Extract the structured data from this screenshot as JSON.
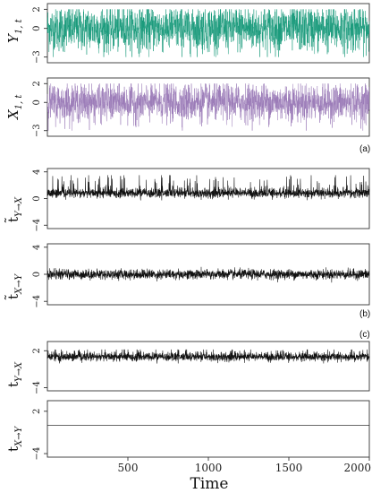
{
  "chart_data": [
    {
      "type": "line",
      "panel": "(a)",
      "ylabel": {
        "main": "Y",
        "sub": "1, t"
      },
      "yticks": [
        "−3",
        "0",
        "2"
      ],
      "ytick_values": [
        -3,
        0,
        2
      ],
      "ylim": [
        -3.6,
        2.6
      ],
      "xlim": [
        0,
        2000
      ],
      "series": [
        {
          "color": "#1a9b7c",
          "kind": "dense-noise",
          "range": [
            -3,
            2
          ],
          "mean": 0.0,
          "sd": 1.2
        }
      ]
    },
    {
      "type": "line",
      "panel": "(a)",
      "ylabel": {
        "main": "X",
        "sub": "1, t"
      },
      "yticks": [
        "−3",
        "0",
        "2"
      ],
      "ytick_values": [
        -3,
        0,
        2
      ],
      "ylim": [
        -3.6,
        2.6
      ],
      "xlim": [
        0,
        2000
      ],
      "series": [
        {
          "color": "#9b7bb8",
          "kind": "dense-noise",
          "range": [
            -3,
            2
          ],
          "mean": 0.0,
          "sd": 1.0
        }
      ]
    },
    {
      "type": "line",
      "panel": "(b)",
      "ylabel": {
        "main": "t̃",
        "sub": "Y→X"
      },
      "yticks": [
        "−4",
        "0",
        "4"
      ],
      "ytick_values": [
        -4,
        0,
        4
      ],
      "ylim": [
        -4.5,
        4.5
      ],
      "xlim": [
        0,
        2000
      ],
      "series": [
        {
          "color": "#111111",
          "kind": "positive-skew",
          "baseline": 0.8,
          "spikes_max": 3.5
        }
      ]
    },
    {
      "type": "line",
      "panel": "(b)",
      "ylabel": {
        "main": "t̃",
        "sub": "X→Y"
      },
      "yticks": [
        "−4",
        "0",
        "4"
      ],
      "ytick_values": [
        -4,
        0,
        4
      ],
      "ylim": [
        -4.5,
        4.5
      ],
      "xlim": [
        0,
        2000
      ],
      "series": [
        {
          "color": "#111111",
          "kind": "symmetric",
          "baseline": 0.0,
          "amp": 0.6
        }
      ]
    },
    {
      "type": "line",
      "panel": "(c)",
      "ylabel": {
        "main": "t",
        "sub": "Y→X"
      },
      "yticks": [
        "−4",
        "2"
      ],
      "ytick_values": [
        -4,
        2
      ],
      "ylim": [
        -4.5,
        3.5
      ],
      "xlim": [
        0,
        2000
      ],
      "series": [
        {
          "color": "#111111",
          "kind": "positive-skew",
          "baseline": 1.0,
          "spikes_max": 2.2
        }
      ]
    },
    {
      "type": "line",
      "panel": "(c)",
      "ylabel": {
        "main": "t",
        "sub": "X→Y"
      },
      "yticks": [
        "−4",
        "2"
      ],
      "ytick_values": [
        -4,
        2
      ],
      "ylim": [
        -4.5,
        3.5
      ],
      "xlim": [
        0,
        2000
      ],
      "series": [
        {
          "color": "#111111",
          "kind": "flat",
          "baseline": 0.0
        }
      ]
    }
  ],
  "xaxis": {
    "ticks": [
      500,
      1000,
      1500,
      2000
    ],
    "tick_labels": [
      "500",
      "1000",
      "1500",
      "2000"
    ],
    "label": "Time"
  },
  "panel_labels": {
    "a": "(a)",
    "b": "(b)",
    "c": "(c)"
  }
}
